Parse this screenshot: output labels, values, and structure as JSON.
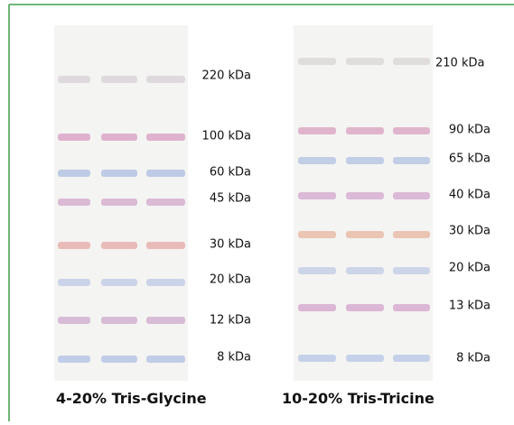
{
  "panels": [
    {
      "caption": "4-20% Tris-Glycine",
      "markers": [
        "220 kDa",
        "100 kDa",
        "60 kDa",
        "45 kDa",
        "30 kDa",
        "20 kDa",
        "12 kDa",
        "8 kDa"
      ]
    },
    {
      "caption": "10-20% Tris-Tricine",
      "markers": [
        "210 kDa",
        "90 kDa",
        "65 kDa",
        "40 kDa",
        "30 kDa",
        "20 kDa",
        "13 kDa",
        "8 kDa"
      ]
    }
  ]
}
